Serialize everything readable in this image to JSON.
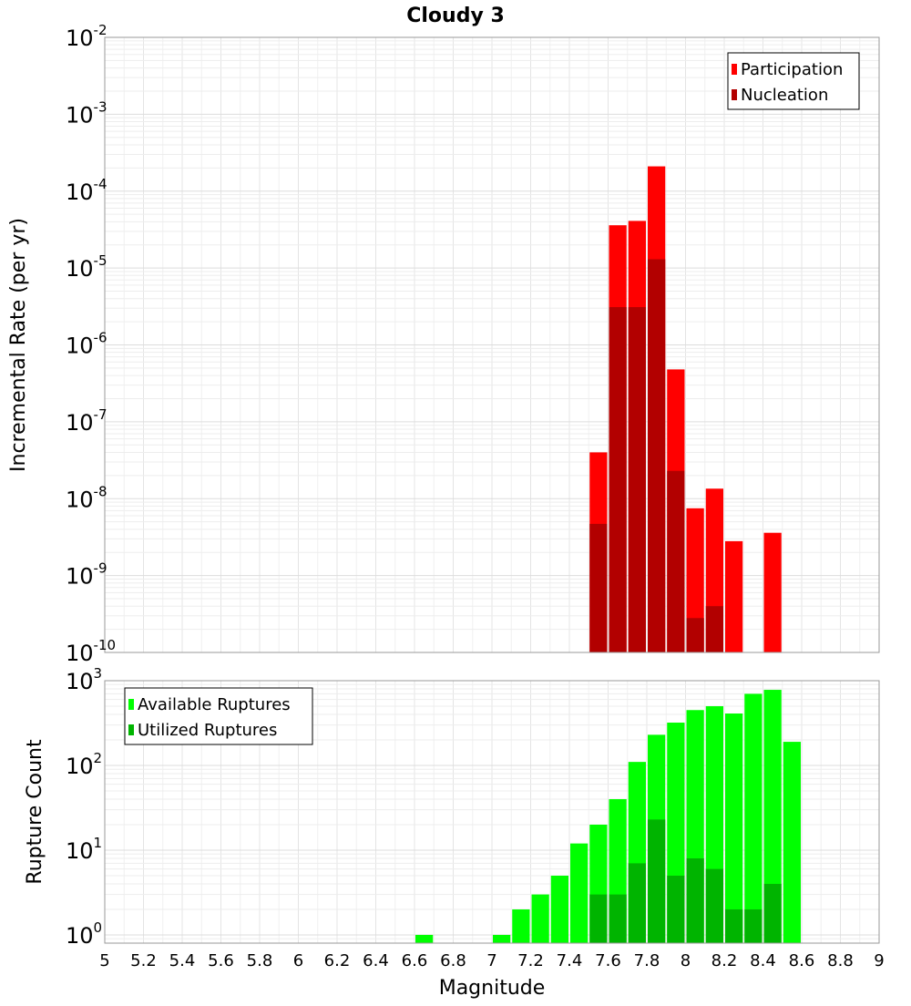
{
  "chart_data": [
    {
      "type": "bar",
      "title": "Cloudy 3",
      "xlabel": "Magnitude",
      "ylabel": "Incremental Rate (per yr)",
      "yscale": "log",
      "ylim": [
        1e-10,
        0.01
      ],
      "xlim": [
        5,
        9
      ],
      "grid": true,
      "legend_position": "top-right",
      "bar_width": 0.1,
      "series": [
        {
          "name": "Participation",
          "color": "#ff0000",
          "x": [
            7.55,
            7.65,
            7.75,
            7.85,
            7.95,
            8.05,
            8.15,
            8.25,
            8.45
          ],
          "values": [
            4e-08,
            3.6e-05,
            4.1e-05,
            0.00021,
            4.8e-07,
            7.5e-09,
            1.35e-08,
            2.8e-09,
            3.6e-09
          ]
        },
        {
          "name": "Nucleation",
          "color": "#b20000",
          "x": [
            7.55,
            7.65,
            7.75,
            7.85,
            7.95,
            8.05,
            8.15
          ],
          "values": [
            4.7e-09,
            3.1e-06,
            3.1e-06,
            1.3e-05,
            2.3e-08,
            2.8e-10,
            4e-10
          ]
        }
      ]
    },
    {
      "type": "bar",
      "xlabel": "Magnitude",
      "ylabel": "Rupture Count",
      "yscale": "log",
      "ylim": [
        0.8,
        1000
      ],
      "xlim": [
        5,
        9
      ],
      "grid": true,
      "legend_position": "top-left",
      "bar_width": 0.1,
      "x_ticks": [
        "5",
        "5.2",
        "5.4",
        "5.6",
        "5.8",
        "6",
        "6.2",
        "6.4",
        "6.6",
        "6.8",
        "7",
        "7.2",
        "7.4",
        "7.6",
        "7.8",
        "8",
        "8.2",
        "8.4",
        "8.6",
        "8.8",
        "9"
      ],
      "series": [
        {
          "name": "Available Ruptures",
          "color": "#00ff00",
          "x": [
            6.65,
            7.05,
            7.15,
            7.25,
            7.35,
            7.45,
            7.55,
            7.65,
            7.75,
            7.85,
            7.95,
            8.05,
            8.15,
            8.25,
            8.35,
            8.45,
            8.55
          ],
          "values": [
            1,
            1,
            2,
            3,
            5,
            12,
            20,
            40,
            110,
            230,
            320,
            450,
            500,
            410,
            700,
            780,
            190
          ]
        },
        {
          "name": "Utilized Ruptures",
          "color": "#00b400",
          "x": [
            7.55,
            7.65,
            7.75,
            7.85,
            7.95,
            8.05,
            8.15,
            8.25,
            8.35,
            8.45
          ],
          "values": [
            3,
            3,
            7,
            23,
            5,
            8,
            6,
            2,
            2,
            4
          ]
        }
      ]
    }
  ]
}
